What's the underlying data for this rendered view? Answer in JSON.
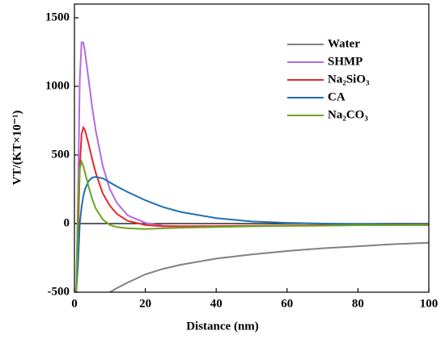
{
  "chart_data": {
    "type": "line",
    "xlabel": "Distance (nm)",
    "ylabel": "VT/(KT×10⁻¹)",
    "x": [
      0.5,
      1,
      1.5,
      2,
      2.5,
      3,
      4,
      5,
      6,
      8,
      10,
      12,
      15,
      20,
      25,
      30,
      40,
      50,
      60,
      70,
      80,
      90,
      100
    ],
    "series": [
      {
        "name": "Water",
        "color": "#808080",
        "values": [
          null,
          null,
          null,
          null,
          null,
          null,
          null,
          null,
          null,
          null,
          -500,
          -470,
          -430,
          -370,
          -330,
          -300,
          -255,
          -225,
          -200,
          -180,
          -165,
          -150,
          -140
        ]
      },
      {
        "name": "SHMP",
        "color": "#b46ae0",
        "values": [
          -500,
          200,
          1050,
          1320,
          1320,
          1250,
          1050,
          850,
          680,
          420,
          250,
          150,
          60,
          5,
          -15,
          -20,
          -20,
          -18,
          -15,
          -13,
          -12,
          -11,
          -10
        ]
      },
      {
        "name": "Na₂SiO₃",
        "color": "#e8272a",
        "values": [
          -500,
          -100,
          400,
          650,
          700,
          680,
          580,
          470,
          370,
          220,
          130,
          70,
          20,
          -10,
          -20,
          -20,
          -18,
          -16,
          -14,
          -12,
          -11,
          -10,
          -10
        ]
      },
      {
        "name": "CA",
        "color": "#1f6fb0",
        "values": [
          -500,
          -300,
          0,
          120,
          200,
          250,
          310,
          335,
          340,
          330,
          300,
          270,
          230,
          170,
          120,
          85,
          40,
          15,
          5,
          0,
          -3,
          -5,
          -5
        ]
      },
      {
        "name": "Na₂CO₃",
        "color": "#6aa61e",
        "values": [
          -500,
          100,
          400,
          450,
          420,
          370,
          270,
          180,
          110,
          30,
          -10,
          -25,
          -35,
          -40,
          -35,
          -30,
          -25,
          -20,
          -17,
          -15,
          -12,
          -11,
          -10
        ]
      }
    ],
    "xlim": [
      0,
      100
    ],
    "xticks": [
      0,
      20,
      40,
      60,
      80,
      100
    ],
    "ylim": [
      -500,
      1600
    ],
    "yticks": [
      -500,
      0,
      500,
      1000,
      1500
    ],
    "legend": "upper right"
  }
}
